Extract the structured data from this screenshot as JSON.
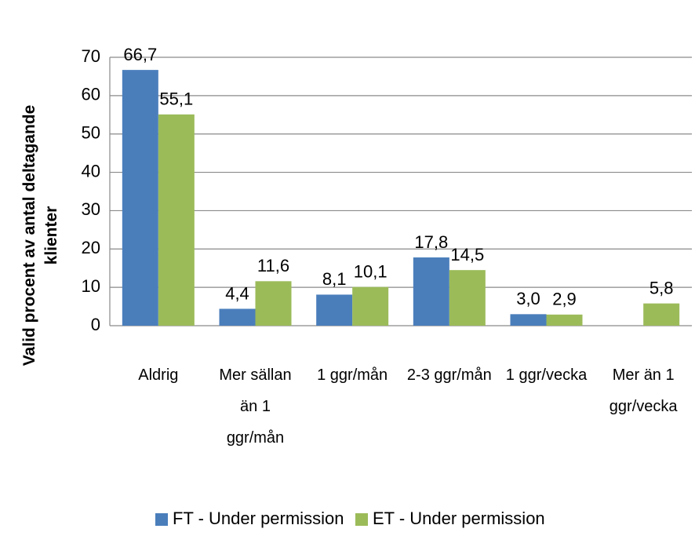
{
  "chart_data": {
    "type": "bar",
    "y_axis_label": "Valid procent av antal deltagande klienter",
    "categories": [
      "Aldrig",
      "Mer sällan än 1 ggr/mån",
      "1 ggr/mån",
      "2-3 ggr/mån",
      "1 ggr/vecka",
      "Mer än 1 ggr/vecka"
    ],
    "series": [
      {
        "name": "FT - Under permission",
        "color": "#4a7ebb",
        "values": [
          66.7,
          4.4,
          8.1,
          17.8,
          3.0,
          null
        ],
        "value_labels": [
          "66,7",
          "4,4",
          "8,1",
          "17,8",
          "3,0",
          null
        ]
      },
      {
        "name": "ET - Under permission",
        "color": "#9bbb59",
        "values": [
          55.1,
          11.6,
          10.1,
          14.5,
          2.9,
          5.8
        ],
        "value_labels": [
          "55,1",
          "11,6",
          "10,1",
          "14,5",
          "2,9",
          "5,8"
        ]
      }
    ],
    "ylim": [
      0,
      70
    ],
    "yticks": [
      0,
      10,
      20,
      30,
      40,
      50,
      60,
      70
    ],
    "grid": true,
    "legend": "bottom"
  }
}
